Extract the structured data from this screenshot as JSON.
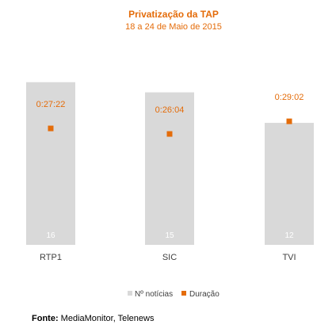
{
  "chart_data": {
    "type": "bar",
    "title": "Privatização da TAP",
    "subtitle": "18 a 24 de Maio de 2015",
    "categories": [
      "RTP1",
      "SIC",
      "TVI"
    ],
    "series": [
      {
        "name": "Nº notícias",
        "kind": "bar",
        "values": [
          16,
          15,
          12
        ],
        "labels": [
          "16",
          "15",
          "12"
        ]
      },
      {
        "name": "Duração",
        "kind": "point",
        "values_seconds": [
          1642,
          1564,
          1742
        ],
        "labels": [
          "0:27:22",
          "0:26:04",
          "0:29:02"
        ]
      }
    ],
    "bar_ylim": [
      0,
      16.6
    ],
    "duration_ylim": [
      0,
      2380
    ],
    "grid": false,
    "legend": "bottom"
  },
  "colors": {
    "title": "#e46c0a",
    "subtitle": "#e46c0a",
    "bar": "#d9d9d9",
    "marker": "#e46c0a",
    "duration_label": "#e46c0a",
    "count_label": "#ffffff"
  },
  "source": {
    "label": "Fonte:",
    "text": " MediaMonitor, Telenews"
  }
}
